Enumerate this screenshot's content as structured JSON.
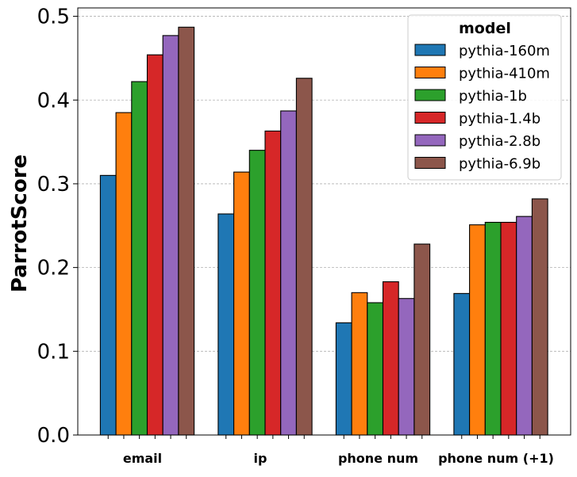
{
  "chart_data": {
    "type": "bar",
    "title": "",
    "xlabel": "",
    "ylabel": "ParrotScore",
    "ylim": [
      0,
      0.51
    ],
    "yticks": [
      0.0,
      0.1,
      0.2,
      0.3,
      0.4,
      0.5
    ],
    "ytick_labels": [
      "0.0",
      "0.1",
      "0.2",
      "0.3",
      "0.4",
      "0.5"
    ],
    "grid": "horizontal dashed",
    "categories": [
      "email",
      "ip",
      "phone num",
      "phone num (+1)"
    ],
    "legend": {
      "title": "model",
      "position": "top-right"
    },
    "series": [
      {
        "name": "pythia-160m",
        "color": "#1f77b4",
        "values": [
          0.31,
          0.264,
          0.134,
          0.169
        ]
      },
      {
        "name": "pythia-410m",
        "color": "#ff7f0e",
        "values": [
          0.385,
          0.314,
          0.17,
          0.251
        ]
      },
      {
        "name": "pythia-1b",
        "color": "#2ca02c",
        "values": [
          0.422,
          0.34,
          0.158,
          0.254
        ]
      },
      {
        "name": "pythia-1.4b",
        "color": "#d62728",
        "values": [
          0.454,
          0.363,
          0.183,
          0.254
        ]
      },
      {
        "name": "pythia-2.8b",
        "color": "#9467bd",
        "values": [
          0.477,
          0.387,
          0.163,
          0.261
        ]
      },
      {
        "name": "pythia-6.9b",
        "color": "#8c564b",
        "values": [
          0.487,
          0.426,
          0.228,
          0.282
        ]
      }
    ]
  }
}
